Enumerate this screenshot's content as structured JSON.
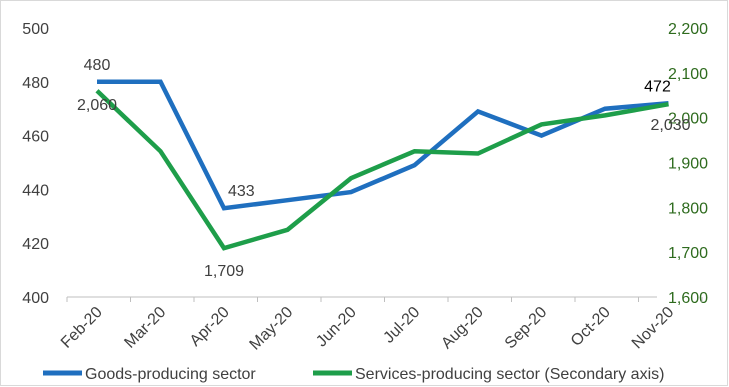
{
  "chart_data": {
    "type": "line",
    "categories": [
      "Feb-20",
      "Mar-20",
      "Apr-20",
      "May-20",
      "Jun-20",
      "Jul-20",
      "Aug-20",
      "Sep-20",
      "Oct-20",
      "Nov-20"
    ],
    "series": [
      {
        "name": "Goods-producing sector",
        "axis": "primary",
        "color": "#1F6FBF",
        "values": [
          480,
          480,
          433,
          436,
          439,
          449,
          469,
          460,
          470,
          472
        ]
      },
      {
        "name": "Services-producing sector (Secondary axis)",
        "axis": "secondary",
        "color": "#1E9E4A",
        "values": [
          2060,
          1925,
          1709,
          1750,
          1865,
          1925,
          1920,
          1985,
          2005,
          2030
        ]
      }
    ],
    "y_primary": {
      "ylim": [
        400,
        500
      ],
      "ticks": [
        "400",
        "420",
        "440",
        "460",
        "480",
        "500"
      ],
      "color": "#404040"
    },
    "y_secondary": {
      "ylim": [
        1600,
        2200
      ],
      "ticks": [
        "1,600",
        "1,700",
        "1,800",
        "1,900",
        "2,000",
        "2,100",
        "2,200"
      ],
      "color": "#2E6B1E"
    },
    "data_labels": [
      {
        "series": 0,
        "index": 0,
        "text": "480"
      },
      {
        "series": 1,
        "index": 0,
        "text": "2,060"
      },
      {
        "series": 0,
        "index": 2,
        "text": "433"
      },
      {
        "series": 1,
        "index": 2,
        "text": "1,709"
      },
      {
        "series": 0,
        "index": 9,
        "text": "472"
      },
      {
        "series": 1,
        "index": 9,
        "text": "2,030"
      }
    ],
    "legend_position": "bottom",
    "grid": false
  }
}
